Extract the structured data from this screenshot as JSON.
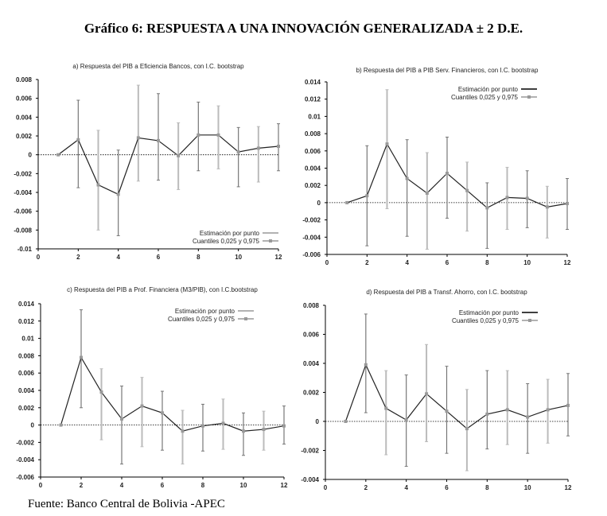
{
  "title": "Gráfico 6: RESPUESTA A UNA INNOVACIÓN GENERALIZADA ± 2 D.E.",
  "footer": "Fuente: Banco Central de Bolivia -APEC",
  "chart_data": [
    {
      "type": "line",
      "title": "a) Respuesta del PIB a Eficiencia Bancos, con I.C. bootstrap",
      "x": [
        1,
        2,
        3,
        4,
        5,
        6,
        7,
        8,
        9,
        10,
        11,
        12
      ],
      "xlim": [
        0,
        12
      ],
      "xticks": [
        0,
        2,
        4,
        6,
        8,
        10,
        12
      ],
      "ylim": [
        -0.01,
        0.008
      ],
      "yticks": [
        "0.008",
        "0.006",
        "0.004",
        "0.002",
        "0",
        "-0.002",
        "-0.004",
        "-0.006",
        "-0.008",
        "-0.01"
      ],
      "legend_position": "bottom-right",
      "legend": [
        "Estimación por punto",
        "Cuantiles 0,025 y 0,975"
      ],
      "series": [
        {
          "name": "Estimación por punto",
          "values": [
            0,
            0.0016,
            -0.0032,
            -0.0042,
            0.0018,
            0.0015,
            -0.0001,
            0.0021,
            0.0021,
            0.0003,
            0.0007,
            0.0009
          ]
        },
        {
          "name": "Cuantil 0,025",
          "values": [
            0,
            -0.0035,
            -0.008,
            -0.0086,
            -0.0028,
            -0.0027,
            -0.0037,
            -0.0017,
            -0.0015,
            -0.0034,
            -0.0029,
            -0.0017
          ]
        },
        {
          "name": "Cuantil 0,975",
          "values": [
            0,
            0.0058,
            0.0026,
            0.0005,
            0.0074,
            0.0065,
            0.0034,
            0.0056,
            0.0052,
            0.0029,
            0.003,
            0.0033
          ]
        }
      ]
    },
    {
      "type": "line",
      "title": "b) Respuesta del PIB a PIB Serv. Financieros, con I.C. bootstrap",
      "x": [
        1,
        2,
        3,
        4,
        5,
        6,
        7,
        8,
        9,
        10,
        11,
        12
      ],
      "xlim": [
        0,
        12
      ],
      "xticks": [
        0,
        2,
        4,
        6,
        8,
        10,
        12
      ],
      "ylim": [
        -0.006,
        0.014
      ],
      "yticks": [
        "0.014",
        "0.012",
        "0.01",
        "0.008",
        "0.006",
        "0.004",
        "0.002",
        "0",
        "-0.002",
        "-0.004",
        "-0.006"
      ],
      "legend_position": "top-right",
      "legend": [
        "Estimación por punto",
        "Cuantiles 0,025 y 0,975"
      ],
      "series": [
        {
          "name": "Estimación por punto",
          "values": [
            0,
            0.0008,
            0.0068,
            0.0028,
            0.0011,
            0.0034,
            0.0014,
            -0.0006,
            0.0006,
            0.0005,
            -0.0005,
            -0.0001
          ]
        },
        {
          "name": "Cuantil 0,025",
          "values": [
            0,
            -0.005,
            -0.0007,
            -0.0039,
            -0.0054,
            -0.0018,
            -0.0033,
            -0.0053,
            -0.0031,
            -0.0029,
            -0.0041,
            -0.0031
          ]
        },
        {
          "name": "Cuantil 0,975",
          "values": [
            0,
            0.0066,
            0.0131,
            0.0073,
            0.0058,
            0.0076,
            0.0047,
            0.0023,
            0.0041,
            0.0037,
            0.0019,
            0.0028
          ]
        }
      ]
    },
    {
      "type": "line",
      "title": "c) Respuesta del PIB a Prof. Financiera (M3/PIB), con I.C.bootstrap",
      "x": [
        1,
        2,
        3,
        4,
        5,
        6,
        7,
        8,
        9,
        10,
        11,
        12
      ],
      "xlim": [
        0,
        12
      ],
      "xticks": [
        0,
        2,
        4,
        6,
        8,
        10,
        12
      ],
      "ylim": [
        -0.006,
        0.014
      ],
      "yticks": [
        "0.014",
        "0.012",
        "0.01",
        "0.008",
        "0.006",
        "0.004",
        "0.002",
        "0",
        "-0.002",
        "-0.004",
        "-0.006"
      ],
      "legend_position": "top-right",
      "legend": [
        "Estimación por punto",
        "Cuantiles 0,025 y 0,975"
      ],
      "series": [
        {
          "name": "Estimación por punto",
          "values": [
            0,
            0.0078,
            0.0038,
            0.0007,
            0.0022,
            0.0014,
            -0.0007,
            -0.0001,
            0.0002,
            -0.0007,
            -0.0005,
            -0.0001
          ]
        },
        {
          "name": "Cuantil 0,025",
          "values": [
            0,
            0.002,
            -0.0017,
            -0.0045,
            -0.0025,
            -0.0029,
            -0.0045,
            -0.003,
            -0.0028,
            -0.0035,
            -0.0029,
            -0.0022
          ]
        },
        {
          "name": "Cuantil 0,975",
          "values": [
            0,
            0.0133,
            0.0065,
            0.0045,
            0.0055,
            0.0039,
            0.0017,
            0.0024,
            0.003,
            0.0014,
            0.0016,
            0.0022
          ]
        }
      ]
    },
    {
      "type": "line",
      "title": "d) Respuesta del PIB a Transf. Ahorro, con I.C. bootstrap",
      "x": [
        1,
        2,
        3,
        4,
        5,
        6,
        7,
        8,
        9,
        10,
        11,
        12
      ],
      "xlim": [
        0,
        12
      ],
      "xticks": [
        0,
        2,
        4,
        6,
        8,
        10,
        12
      ],
      "ylim": [
        -0.004,
        0.008
      ],
      "yticks": [
        "0.008",
        "0.006",
        "0.004",
        "0.002",
        "0",
        "-0.002",
        "-0.004"
      ],
      "legend_position": "top-right",
      "legend": [
        "Estimación por punto",
        "Cuantiles 0,025 y 0,975"
      ],
      "series": [
        {
          "name": "Estimación por punto",
          "values": [
            0,
            0.0039,
            0.0009,
            0.0001,
            0.0019,
            0.0007,
            -0.0005,
            0.0005,
            0.0008,
            0.0003,
            0.0008,
            0.0011
          ]
        },
        {
          "name": "Cuantil 0,025",
          "values": [
            0,
            0.0006,
            -0.0023,
            -0.0031,
            -0.0014,
            -0.0022,
            -0.0034,
            -0.0019,
            -0.0016,
            -0.0022,
            -0.0015,
            -0.001
          ]
        },
        {
          "name": "Cuantil 0,975",
          "values": [
            0,
            0.0074,
            0.0035,
            0.0032,
            0.0053,
            0.0038,
            0.0022,
            0.0035,
            0.0035,
            0.0026,
            0.0029,
            0.0033
          ]
        }
      ]
    }
  ]
}
